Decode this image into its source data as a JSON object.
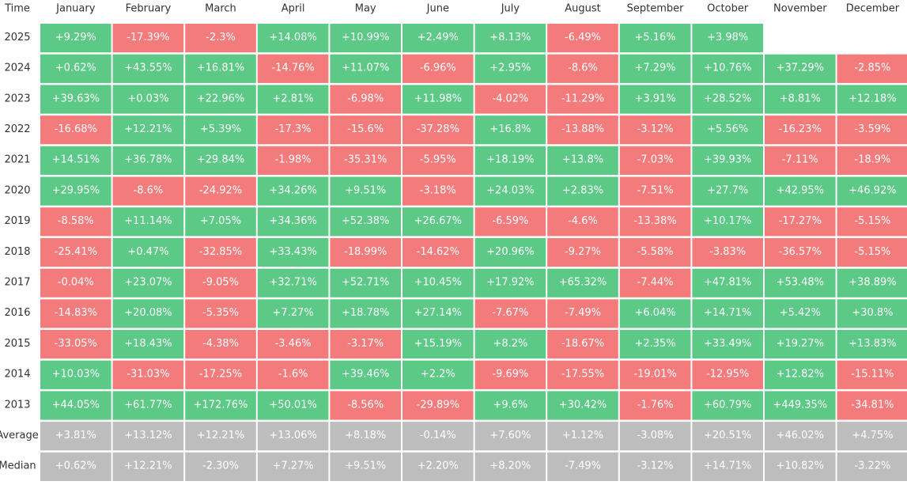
{
  "table": {
    "header": [
      "Time",
      "January",
      "February",
      "March",
      "April",
      "May",
      "June",
      "July",
      "August",
      "September",
      "October",
      "November",
      "December"
    ],
    "year_rows": [
      [
        "2025",
        "+9.29%",
        "-17.39%",
        "-2.3%",
        "+14.08%",
        "+10.99%",
        "+2.49%",
        "+8.13%",
        "-6.49%",
        "+5.16%",
        "+3.98%"
      ],
      [
        "2024",
        "+0.62%",
        "+43.55%",
        "+16.81%",
        "-14.76%",
        "+11.07%",
        "-6.96%",
        "+2.95%",
        "-8.6%",
        "+7.29%",
        "+10.76%",
        "+37.29%",
        "-2.85%"
      ],
      [
        "2023",
        "+39.63%",
        "+0.03%",
        "+22.96%",
        "+2.81%",
        "-6.98%",
        "+11.98%",
        "-4.02%",
        "-11.29%",
        "+3.91%",
        "+28.52%",
        "+8.81%",
        "+12.18%"
      ],
      [
        "2022",
        "-16.68%",
        "+12.21%",
        "+5.39%",
        "-17.3%",
        "-15.6%",
        "-37.28%",
        "+16.8%",
        "-13.88%",
        "-3.12%",
        "+5.56%",
        "-16.23%",
        "-3.59%"
      ],
      [
        "2021",
        "+14.51%",
        "+36.78%",
        "+29.84%",
        "-1.98%",
        "-35.31%",
        "-5.95%",
        "+18.19%",
        "+13.8%",
        "-7.03%",
        "+39.93%",
        "-7.11%",
        "-18.9%"
      ],
      [
        "2020",
        "+29.95%",
        "-8.6%",
        "-24.92%",
        "+34.26%",
        "+9.51%",
        "-3.18%",
        "+24.03%",
        "+2.83%",
        "-7.51%",
        "+27.7%",
        "+42.95%",
        "+46.92%"
      ],
      [
        "2019",
        "-8.58%",
        "+11.14%",
        "+7.05%",
        "+34.36%",
        "+52.38%",
        "+26.67%",
        "-6.59%",
        "-4.6%",
        "-13.38%",
        "+10.17%",
        "-17.27%",
        "-5.15%"
      ],
      [
        "2018",
        "-25.41%",
        "+0.47%",
        "-32.85%",
        "+33.43%",
        "-18.99%",
        "-14.62%",
        "+20.96%",
        "-9.27%",
        "-5.58%",
        "-3.83%",
        "-36.57%",
        "-5.15%"
      ],
      [
        "2017",
        "-0.04%",
        "+23.07%",
        "-9.05%",
        "+32.71%",
        "+52.71%",
        "+10.45%",
        "+17.92%",
        "+65.32%",
        "-7.44%",
        "+47.81%",
        "+53.48%",
        "+38.89%"
      ],
      [
        "2016",
        "-14.83%",
        "+20.08%",
        "-5.35%",
        "+7.27%",
        "+18.78%",
        "+27.14%",
        "-7.67%",
        "-7.49%",
        "+6.04%",
        "+14.71%",
        "+5.42%",
        "+30.8%"
      ],
      [
        "2015",
        "-33.05%",
        "+18.43%",
        "-4.38%",
        "-3.46%",
        "-3.17%",
        "+15.19%",
        "+8.2%",
        "-18.67%",
        "+2.35%",
        "+33.49%",
        "+19.27%",
        "+13.83%"
      ],
      [
        "2014",
        "+10.03%",
        "-31.03%",
        "-17.25%",
        "-1.6%",
        "+39.46%",
        "+2.2%",
        "-9.69%",
        "-17.55%",
        "-19.01%",
        "-12.95%",
        "+12.82%",
        "-15.11%"
      ],
      [
        "2013",
        "+44.05%",
        "+61.77%",
        "+172.76%",
        "+50.01%",
        "-8.56%",
        "-29.89%",
        "+9.6%",
        "+30.42%",
        "-1.76%",
        "+60.79%",
        "+449.35%",
        "-34.81%"
      ]
    ],
    "summary_rows": [
      [
        "Average",
        "+3.81%",
        "+13.12%",
        "+12.21%",
        "+13.06%",
        "+8.18%",
        "-0.14%",
        "+7.60%",
        "+1.12%",
        "-3.08%",
        "+20.51%",
        "+46.02%",
        "+4.75%"
      ],
      [
        "Median",
        "+0.62%",
        "+12.21%",
        "-2.30%",
        "+7.27%",
        "+9.51%",
        "+2.20%",
        "+8.20%",
        "-7.49%",
        "-3.12%",
        "+14.71%",
        "+10.82%",
        "-3.22%"
      ]
    ],
    "colors": {
      "positive": "#5cc987",
      "negative": "#f47b7b",
      "summary": "#bdbdbd"
    }
  }
}
